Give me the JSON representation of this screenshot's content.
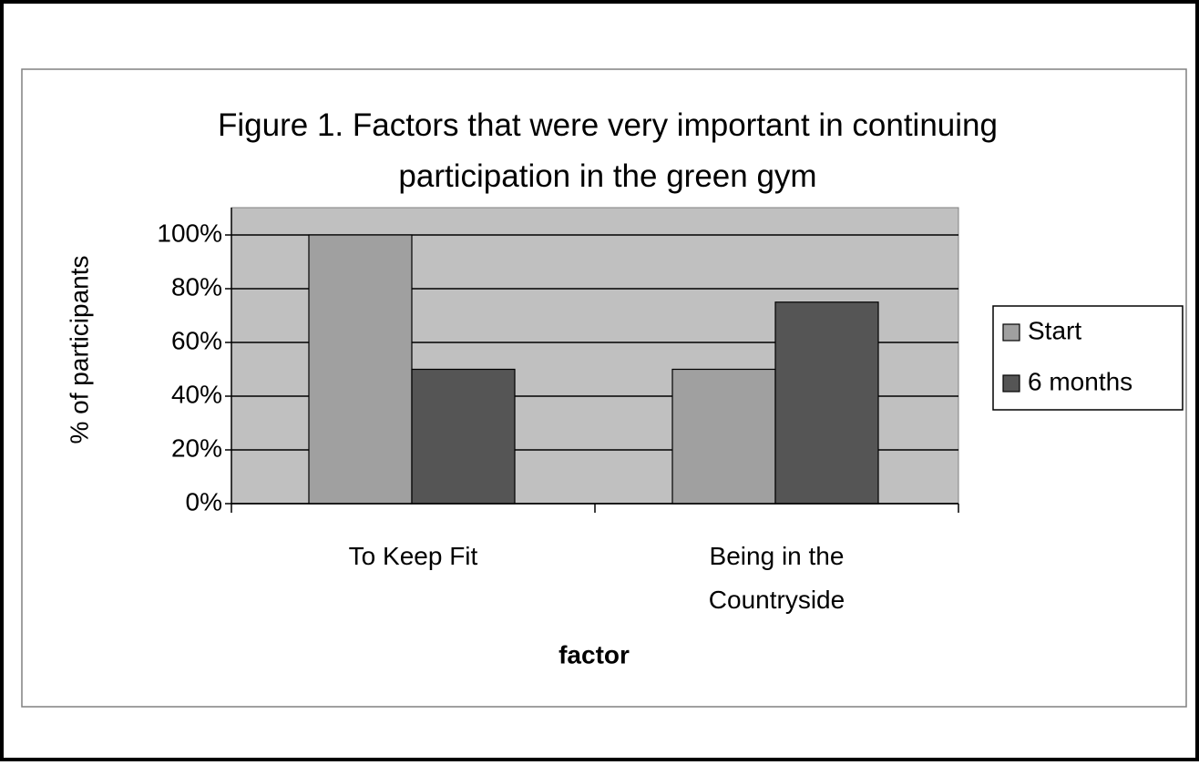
{
  "chart_data": {
    "type": "bar",
    "title": "Figure 1. Factors that were very important in continuing participation in the green gym",
    "x_label": "factor",
    "y_label": "% of participants",
    "categories": [
      "To Keep Fit",
      "Being in the Countryside"
    ],
    "series": [
      {
        "name": "Start",
        "color": "#a0a0a0",
        "values": [
          100,
          50
        ]
      },
      {
        "name": "6 months",
        "color": "#555555",
        "values": [
          50,
          75
        ]
      }
    ],
    "ylim": [
      0,
      100
    ],
    "yticks": [
      {
        "value": 0,
        "label": "0%"
      },
      {
        "value": 20,
        "label": "20%"
      },
      {
        "value": 40,
        "label": "40%"
      },
      {
        "value": 60,
        "label": "60%"
      },
      {
        "value": 80,
        "label": "80%"
      },
      {
        "value": 100,
        "label": "100%"
      }
    ],
    "grid": true,
    "legend": "right"
  }
}
